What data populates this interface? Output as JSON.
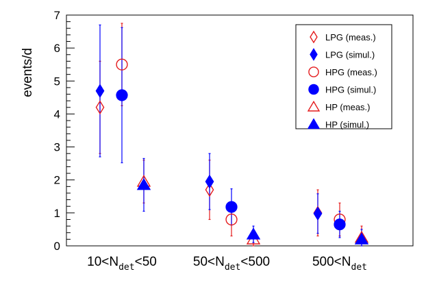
{
  "chart_data": {
    "type": "scatter",
    "ylabel": "events/d",
    "ylim": [
      0,
      7
    ],
    "yticks": [
      0,
      1,
      2,
      3,
      4,
      5,
      6,
      7
    ],
    "categories": [
      {
        "prefix": "10<N",
        "sub": "det",
        "suffix": "<50"
      },
      {
        "prefix": "50<N",
        "sub": "det",
        "suffix": "<500"
      },
      {
        "prefix": "500<N",
        "sub": "det",
        "suffix": ""
      }
    ],
    "series": [
      {
        "name": "LPG (meas.)",
        "marker": "diamond-open",
        "color": "#e41a1c",
        "offset": -1,
        "values": [
          4.2,
          1.7,
          1.0
        ],
        "err_low": [
          1.4,
          0.9,
          0.7
        ],
        "err_high": [
          1.4,
          0.9,
          0.7
        ]
      },
      {
        "name": "LPG (simul.)",
        "marker": "diamond-filled",
        "color": "#0000ff",
        "offset": -1,
        "values": [
          4.7,
          1.95,
          0.98
        ],
        "err_low": [
          2.0,
          0.85,
          0.6
        ],
        "err_high": [
          2.0,
          0.85,
          0.6
        ]
      },
      {
        "name": "HPG (meas.)",
        "marker": "circle-open",
        "color": "#e41a1c",
        "offset": 0,
        "values": [
          5.5,
          0.8,
          0.8
        ],
        "err_low": [
          1.25,
          0.5,
          0.5
        ],
        "err_high": [
          1.25,
          0.5,
          0.5
        ]
      },
      {
        "name": "HPG (simul.)",
        "marker": "circle-filled",
        "color": "#0000ff",
        "offset": 0,
        "values": [
          4.57,
          1.18,
          0.65
        ],
        "err_low": [
          2.05,
          0.55,
          0.4
        ],
        "err_high": [
          2.05,
          0.55,
          0.4
        ]
      },
      {
        "name": "HP (meas.)",
        "marker": "triangle-open",
        "color": "#e41a1c",
        "offset": 1,
        "values": [
          1.95,
          0.2,
          0.25
        ],
        "err_low": [
          0.65,
          0.2,
          0.25
        ],
        "err_high": [
          0.65,
          0.2,
          0.35
        ]
      },
      {
        "name": "HP (simul.)",
        "marker": "triangle-filled",
        "color": "#0000ff",
        "offset": 1,
        "values": [
          1.85,
          0.35,
          0.2
        ],
        "err_low": [
          0.8,
          0.25,
          0.2
        ],
        "err_high": [
          0.8,
          0.25,
          0.3
        ]
      }
    ],
    "legend": "top-right"
  }
}
